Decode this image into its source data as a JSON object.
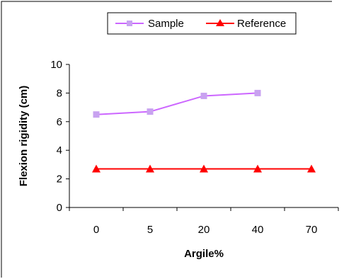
{
  "chart_data": {
    "type": "line",
    "categories": [
      "0",
      "5",
      "20",
      "40",
      "70"
    ],
    "xlabel": "Argile%",
    "ylabel": "Flexion rigidity (cm)",
    "ylim": [
      0,
      10
    ],
    "yticks": [
      "0",
      "2",
      "4",
      "6",
      "8",
      "10"
    ],
    "grid": false,
    "legend_position": "top-right",
    "series": [
      {
        "name": "Sample",
        "color": "#cc66ff",
        "marker_color": "#c8a2f0",
        "marker": "square",
        "values": [
          6.5,
          6.7,
          7.8,
          8.0,
          null
        ]
      },
      {
        "name": "Reference",
        "color": "#ff0000",
        "marker_color": "#ff0000",
        "marker": "triangle",
        "values": [
          2.7,
          2.7,
          2.7,
          2.7,
          2.7
        ]
      }
    ]
  }
}
